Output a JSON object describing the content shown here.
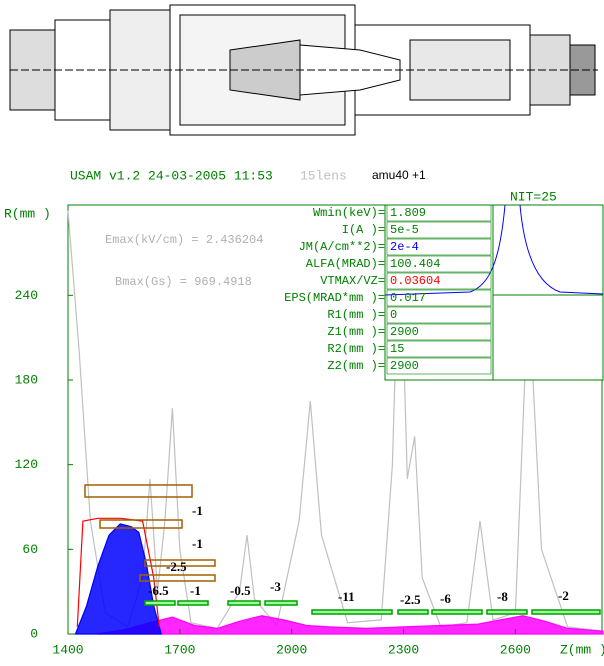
{
  "chart_data": {
    "type": "line",
    "title": "USAM v1.2 24-03-2005 11:53",
    "subtitle": "15lens",
    "ion": "amu40 +1",
    "iteration": "NIT=25",
    "ylabel": "R(mm )",
    "xlabel": "Z(mm )",
    "xlim": [
      1400,
      2835
    ],
    "ylim": [
      0,
      304
    ],
    "xticks": [
      1400,
      1700,
      2000,
      2300,
      2600
    ],
    "yticks": [
      0,
      60,
      120,
      180,
      240
    ],
    "axis_color": "#008000",
    "field_notes": [
      "Emax(kV/cm) = 2.436204",
      "Bmax(Gs) = 969.4918"
    ],
    "parameters": [
      {
        "label": "Wmin(keV)=",
        "value": "1.809"
      },
      {
        "label": "I(A )=",
        "value": "5e-5"
      },
      {
        "label": "JM(A/cm**2)=",
        "value": "2e-4"
      },
      {
        "label": "ALFA(MRAD)=",
        "value": "100.404"
      },
      {
        "label": "VTMAX/VZ=",
        "value": "0.03604"
      },
      {
        "label": "EPS(MRAD*mm )=",
        "value": "0.017"
      },
      {
        "label": "R1(mm )=",
        "value": "0"
      },
      {
        "label": "Z1(mm )=",
        "value": "2900"
      },
      {
        "label": "R2(mm )=",
        "value": "15"
      },
      {
        "label": "Z2(mm )=",
        "value": "2900"
      }
    ],
    "electrodes": [
      "-1",
      "-1",
      "-2.5",
      "-6.5",
      "-1",
      "-0.5",
      "-3",
      "-11",
      "-2.5",
      "-6",
      "-8",
      "-2"
    ],
    "series": [
      {
        "color": "#c0c0c0",
        "style": "line",
        "x": [
          1400,
          1430,
          1460,
          1500,
          1560,
          1600,
          1620,
          1640,
          1660,
          1680,
          1700,
          1730,
          1800,
          1860,
          1880,
          1900,
          1960,
          2020,
          2050,
          2080,
          2150,
          2240,
          2270,
          2290,
          2310,
          2330,
          2350,
          2400,
          2470,
          2505,
          2540,
          2600,
          2635,
          2670,
          2740,
          2835
        ],
        "values": [
          300,
          200,
          80,
          15,
          5,
          40,
          110,
          30,
          80,
          160,
          60,
          8,
          4,
          30,
          70,
          25,
          6,
          80,
          165,
          70,
          8,
          10,
          120,
          300,
          110,
          140,
          40,
          5,
          8,
          80,
          10,
          15,
          245,
          60,
          5,
          2
        ]
      },
      {
        "color": "#ff00ff",
        "style": "area",
        "x": [
          1480,
          1550,
          1620,
          1680,
          1740,
          1800,
          1860,
          1920,
          1980,
          2040,
          2100,
          2200,
          2300,
          2400,
          2500,
          2560,
          2620,
          2680,
          2740,
          2835
        ],
        "values": [
          0,
          3,
          8,
          12,
          6,
          4,
          9,
          13,
          10,
          6,
          5,
          4,
          5,
          6,
          7,
          10,
          13,
          9,
          4,
          2
        ]
      },
      {
        "color": "#0000ff",
        "style": "area",
        "x": [
          1420,
          1450,
          1480,
          1510,
          1540,
          1570,
          1590,
          1610,
          1630,
          1650
        ],
        "values": [
          0,
          20,
          48,
          70,
          78,
          76,
          72,
          50,
          20,
          0
        ]
      },
      {
        "color": "#ff0000",
        "style": "line",
        "x": [
          1425,
          1440,
          1480,
          1540,
          1600,
          1630,
          1645
        ],
        "values": [
          5,
          80,
          82,
          82,
          80,
          40,
          5
        ]
      }
    ]
  }
}
